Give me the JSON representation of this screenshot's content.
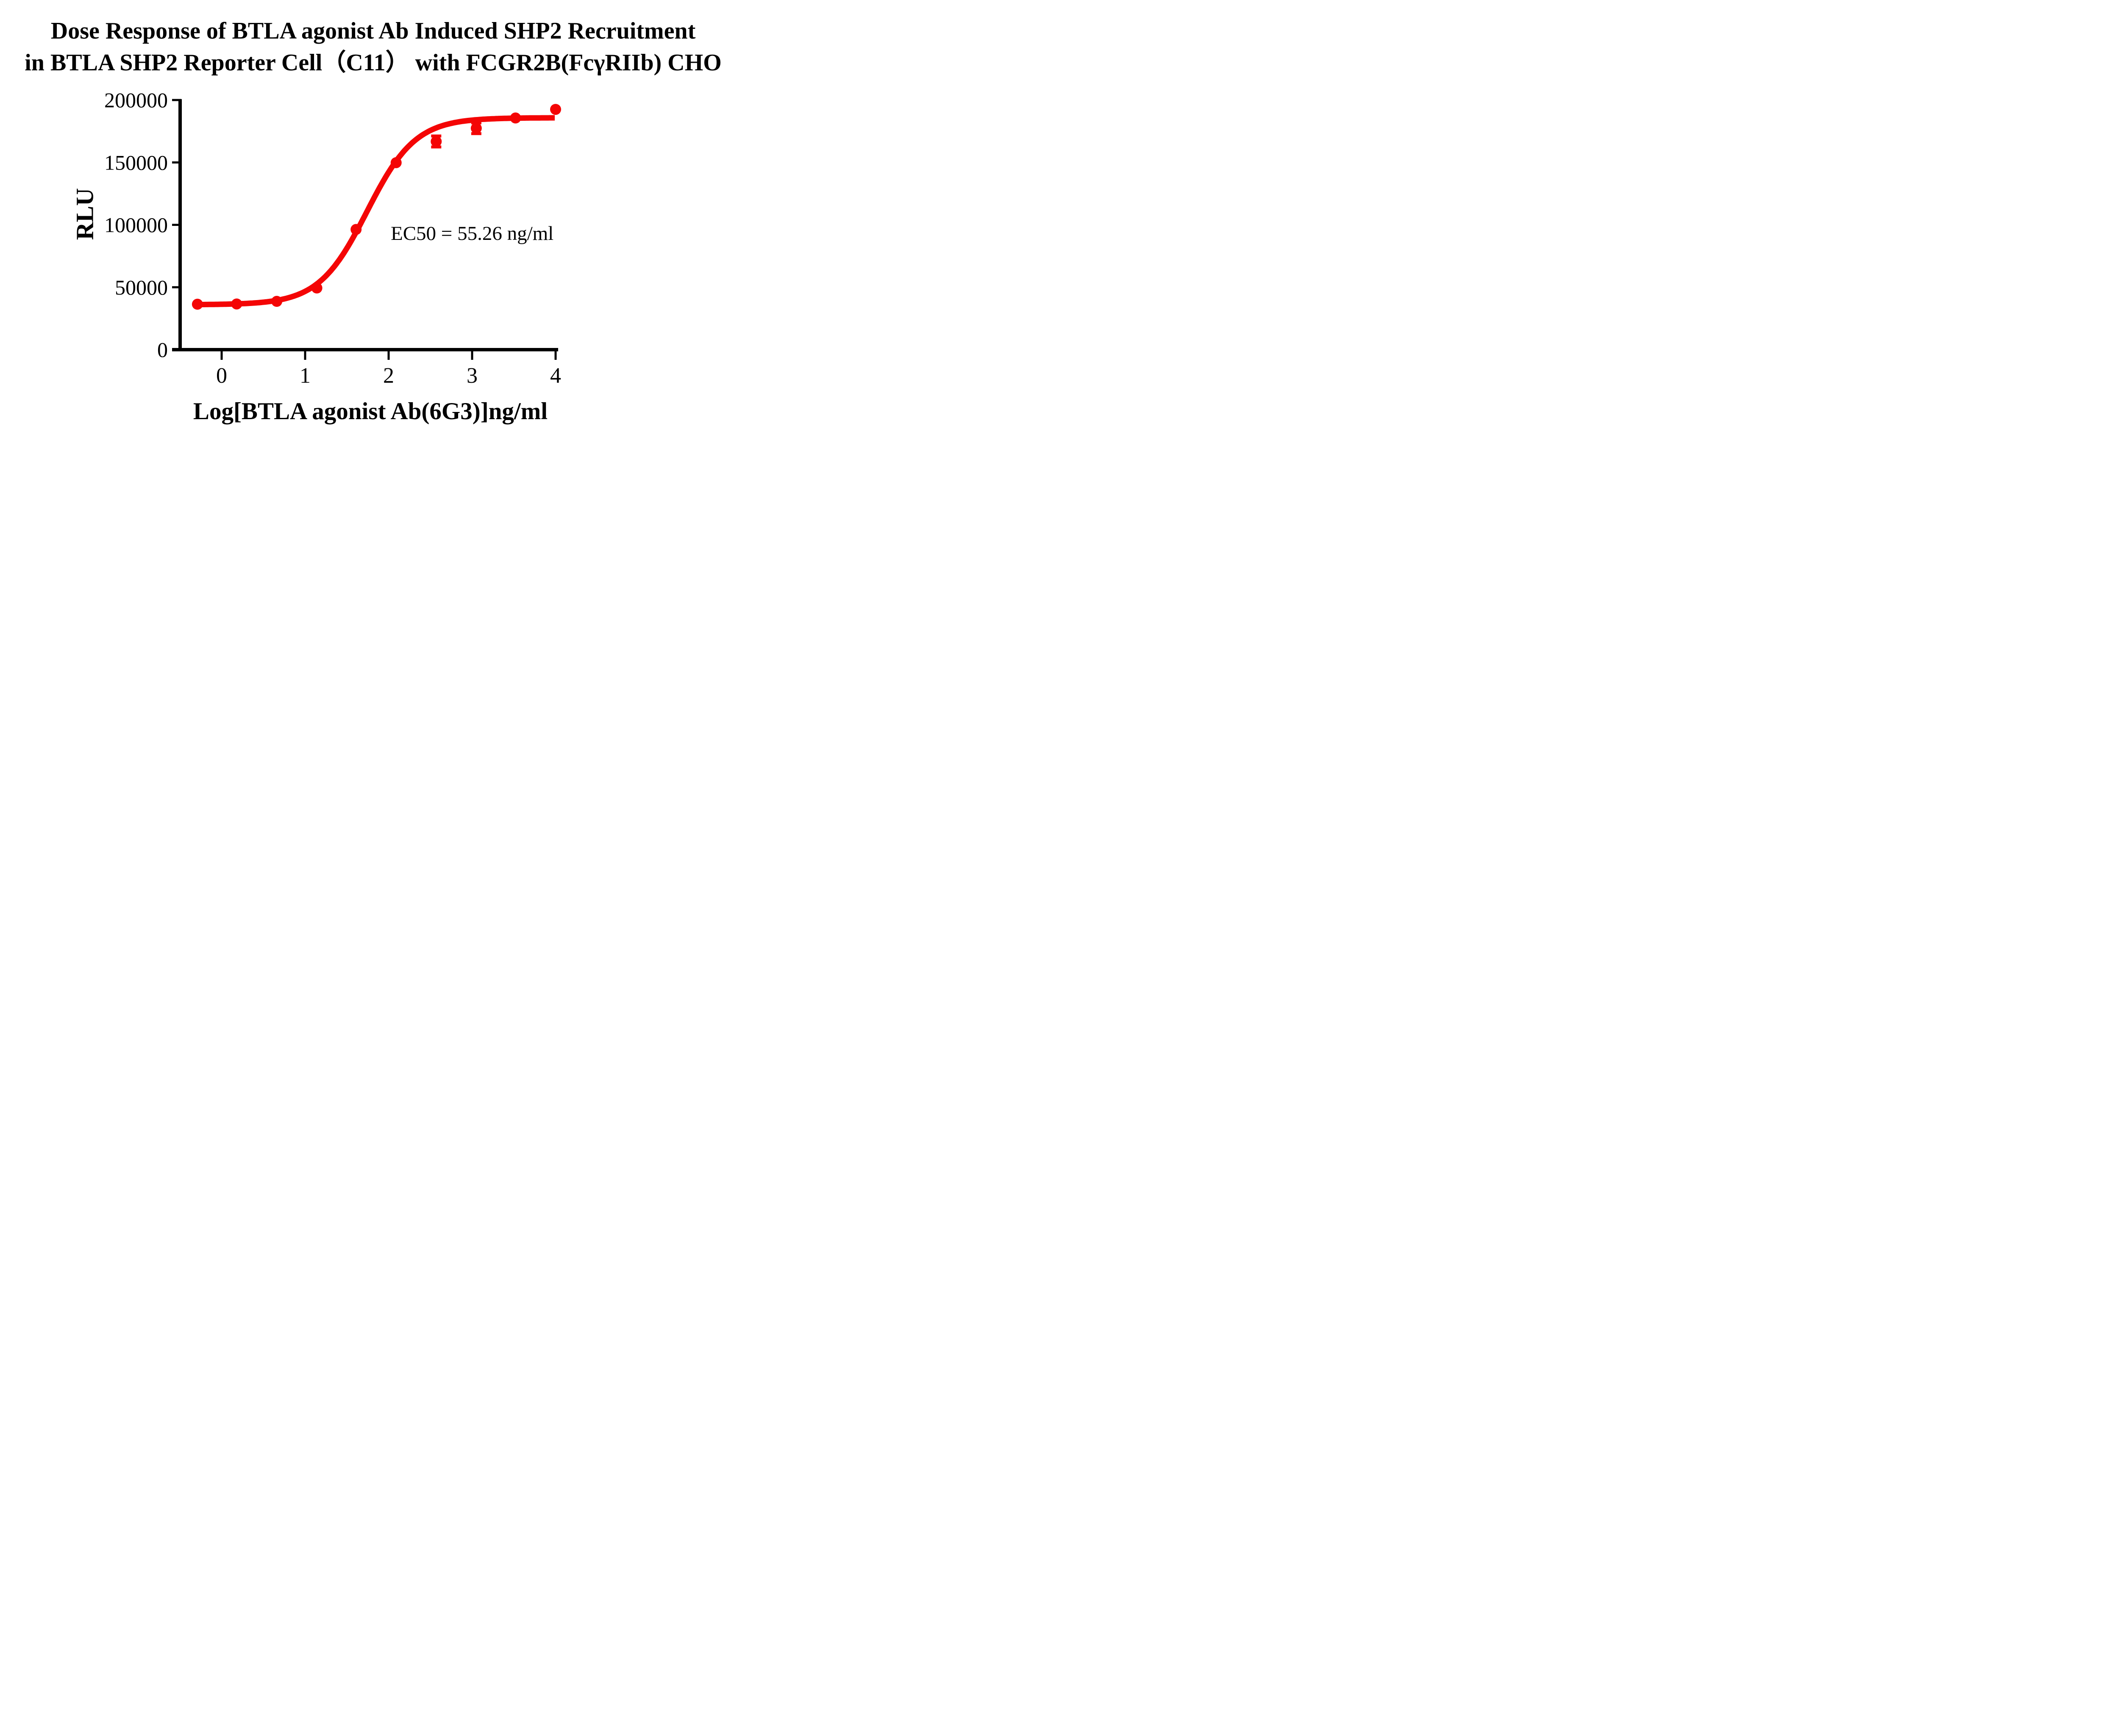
{
  "title": {
    "line1": "Dose Response of BTLA agonist Ab Induced SHP2 Recruitment",
    "line2": "in BTLA SHP2 Reporter Cell（C11） with FCGR2B(FcγRIIb) CHO"
  },
  "annotation": {
    "ec50": "EC50 = 55.26 ng/ml"
  },
  "colors": {
    "curve_red": "#F40505",
    "axis_black": "#000000",
    "background": "#FFFFFF"
  },
  "chart_data": {
    "type": "scatter",
    "subtype": "dose-response sigmoidal fit",
    "title": "Dose Response of BTLA agonist Ab Induced SHP2 Recruitment in BTLA SHP2 Reporter Cell（C11） with FCGR2B(FcγRIIb) CHO",
    "xlabel": "Log[BTLA agonist Ab(6G3)]ng/ml",
    "ylabel": "RLU",
    "xlim": [
      -0.59,
      4.1
    ],
    "ylim": [
      0,
      200000
    ],
    "x_ticks": [
      0,
      1,
      2,
      3,
      4
    ],
    "y_ticks": [
      0,
      50000,
      100000,
      150000,
      200000
    ],
    "grid": false,
    "legend_position": "none",
    "series": [
      {
        "name": "BTLA agonist Ab(6G3)",
        "marker": "filled-circle",
        "color": "#F40505",
        "points": [
          {
            "x": -0.29,
            "y": 36400,
            "err": 0
          },
          {
            "x": 0.18,
            "y": 36600,
            "err": 0
          },
          {
            "x": 0.66,
            "y": 38700,
            "err": 0
          },
          {
            "x": 1.14,
            "y": 49400,
            "err": 0
          },
          {
            "x": 1.61,
            "y": 96300,
            "err": 0
          },
          {
            "x": 2.09,
            "y": 149800,
            "err": 0
          },
          {
            "x": 2.57,
            "y": 166800,
            "err": 4400
          },
          {
            "x": 3.05,
            "y": 177400,
            "err": 4300
          },
          {
            "x": 3.52,
            "y": 185600,
            "err": 0
          },
          {
            "x": 4.0,
            "y": 192500,
            "err": 0
          }
        ]
      }
    ],
    "fit_curve": {
      "model": "four-parameter logistic (sigmoidal dose-response)",
      "bottom": 36000,
      "top": 185800,
      "log_ec50": 1.7425,
      "hill_slope": 1.5,
      "x_start": -0.31,
      "x_end": 4.0,
      "ec50_ng_ml": 55.26
    }
  }
}
